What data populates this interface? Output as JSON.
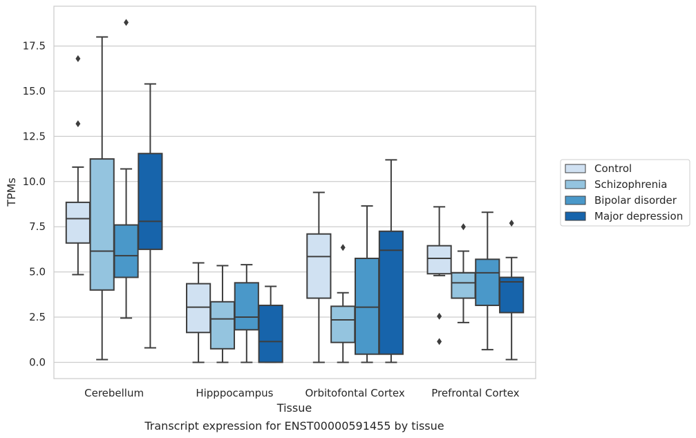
{
  "chart_data": {
    "type": "box",
    "xlabel": "Tissue",
    "ylabel": "TPMs",
    "caption": "Transcript expression for ENST00000591455 by tissue",
    "ylim": [
      -0.9,
      19.7
    ],
    "yticks": [
      "0.0",
      "2.5",
      "5.0",
      "7.5",
      "10.0",
      "12.5",
      "15.0",
      "17.5"
    ],
    "grid": "horizontal",
    "legend_position": "right",
    "categories": [
      "Cerebellum",
      "Hipppocampus",
      "Orbitofontal Cortex",
      "Prefrontal Cortex"
    ],
    "series": [
      {
        "name": "Control",
        "color": "#d0e1f2",
        "boxes": [
          {
            "whislo": 4.85,
            "q1": 6.6,
            "med": 7.95,
            "q3": 8.85,
            "whishi": 10.8,
            "fliers": [
              13.2,
              16.8
            ]
          },
          {
            "whislo": 0.0,
            "q1": 1.65,
            "med": 3.05,
            "q3": 4.35,
            "whishi": 5.5,
            "fliers": []
          },
          {
            "whislo": 0.0,
            "q1": 3.55,
            "med": 5.85,
            "q3": 7.1,
            "whishi": 9.4,
            "fliers": []
          },
          {
            "whislo": 4.8,
            "q1": 4.9,
            "med": 5.75,
            "q3": 6.45,
            "whishi": 8.6,
            "fliers": [
              2.55,
              1.15
            ]
          }
        ]
      },
      {
        "name": "Schizophrenia",
        "color": "#94c4df",
        "boxes": [
          {
            "whislo": 0.15,
            "q1": 4.0,
            "med": 6.15,
            "q3": 11.25,
            "whishi": 18.0,
            "fliers": []
          },
          {
            "whislo": 0.0,
            "q1": 0.75,
            "med": 2.4,
            "q3": 3.35,
            "whishi": 5.35,
            "fliers": []
          },
          {
            "whislo": 0.0,
            "q1": 1.1,
            "med": 2.35,
            "q3": 3.1,
            "whishi": 3.85,
            "fliers": [
              6.35
            ]
          },
          {
            "whislo": 2.2,
            "q1": 3.55,
            "med": 4.4,
            "q3": 4.95,
            "whishi": 6.15,
            "fliers": [
              7.5
            ]
          }
        ]
      },
      {
        "name": "Bipolar disorder",
        "color": "#4a98c9",
        "boxes": [
          {
            "whislo": 2.45,
            "q1": 4.7,
            "med": 5.9,
            "q3": 7.6,
            "whishi": 10.7,
            "fliers": [
              18.8
            ]
          },
          {
            "whislo": 0.0,
            "q1": 1.8,
            "med": 2.5,
            "q3": 4.4,
            "whishi": 5.4,
            "fliers": []
          },
          {
            "whislo": 0.0,
            "q1": 0.45,
            "med": 3.05,
            "q3": 5.75,
            "whishi": 8.65,
            "fliers": []
          },
          {
            "whislo": 0.7,
            "q1": 3.15,
            "med": 4.95,
            "q3": 5.7,
            "whishi": 8.3,
            "fliers": []
          }
        ]
      },
      {
        "name": "Major depression",
        "color": "#1764ab",
        "boxes": [
          {
            "whislo": 0.8,
            "q1": 6.25,
            "med": 7.8,
            "q3": 11.55,
            "whishi": 15.4,
            "fliers": []
          },
          {
            "whislo": 0.0,
            "q1": 0.0,
            "med": 1.15,
            "q3": 3.15,
            "whishi": 4.2,
            "fliers": []
          },
          {
            "whislo": 0.0,
            "q1": 0.45,
            "med": 6.2,
            "q3": 7.25,
            "whishi": 11.2,
            "fliers": []
          },
          {
            "whislo": 0.15,
            "q1": 2.75,
            "med": 4.45,
            "q3": 4.7,
            "whishi": 5.8,
            "fliers": [
              7.7
            ]
          }
        ]
      }
    ]
  }
}
